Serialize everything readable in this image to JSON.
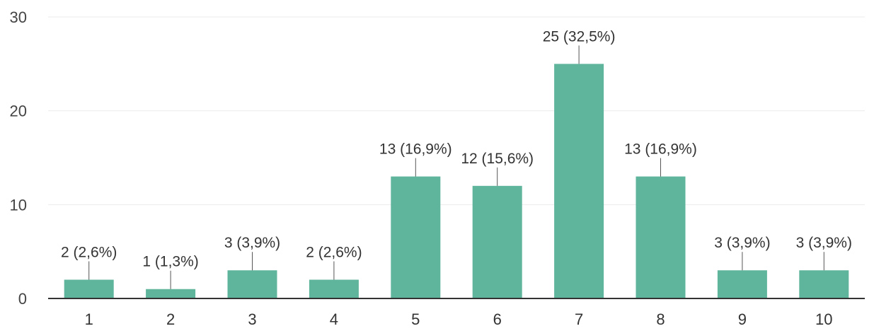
{
  "chart_data": {
    "type": "bar",
    "categories": [
      "1",
      "2",
      "3",
      "4",
      "5",
      "6",
      "7",
      "8",
      "9",
      "10"
    ],
    "values": [
      2,
      1,
      3,
      2,
      13,
      12,
      25,
      13,
      3,
      3
    ],
    "data_labels": [
      "2 (2,6%)",
      "1 (1,3%)",
      "3 (3,9%)",
      "2 (2,6%)",
      "13 (16,9%)",
      "12 (15,6%)",
      "25 (32,5%)",
      "13 (16,9%)",
      "3 (3,9%)",
      "3 (3,9%)"
    ],
    "y_ticks": [
      "0",
      "10",
      "20",
      "30"
    ],
    "ylim": [
      0,
      30
    ],
    "grid": true,
    "bar_color": "#5fb49c",
    "title": "",
    "xlabel": "",
    "ylabel": ""
  }
}
